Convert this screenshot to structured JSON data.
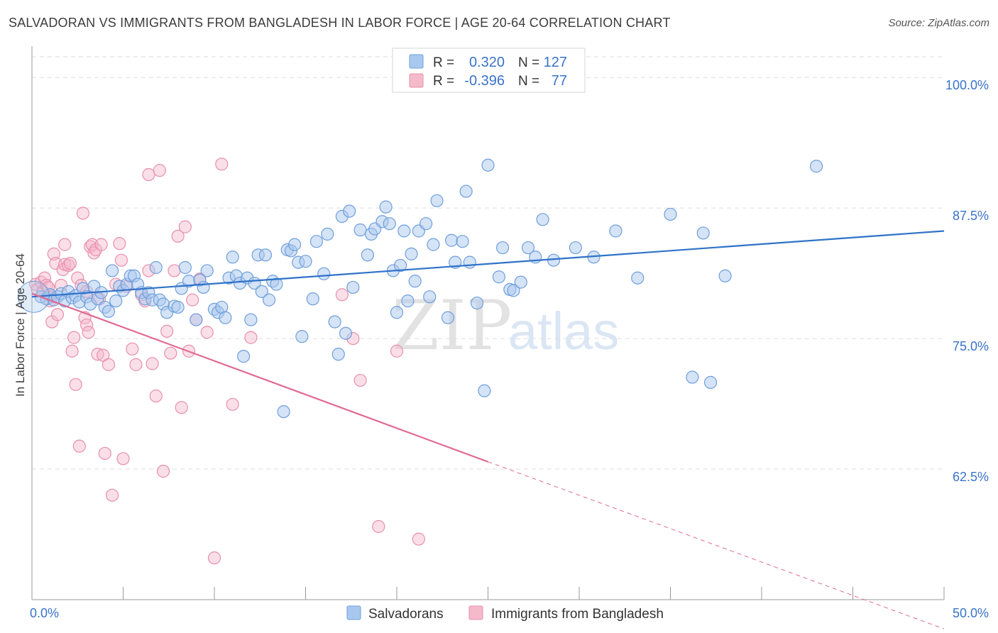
{
  "header": {
    "title": "SALVADORAN VS IMMIGRANTS FROM BANGLADESH IN LABOR FORCE | AGE 20-64 CORRELATION CHART",
    "source": "Source: ZipAtlas.com"
  },
  "watermark": {
    "zip": "ZIP",
    "atlas": "atlas"
  },
  "colors": {
    "blue_fill": "#a9c8ee",
    "blue_stroke": "#6f9fdc",
    "blue_line": "#2f72c9",
    "pink_fill": "#f5b9cc",
    "pink_stroke": "#e88fac",
    "pink_line": "#e06a94",
    "grid": "#dddddd",
    "tick_text": "#3a73c9"
  },
  "legend": {
    "rows": [
      {
        "r_label": "R =",
        "r_value": "0.320",
        "n_label": "N =",
        "n_value": "127"
      },
      {
        "r_label": "R =",
        "r_value": "-0.396",
        "n_label": "N =",
        "n_value": "77"
      }
    ]
  },
  "chart_data": {
    "type": "scatter",
    "title": "SALVADORAN VS IMMIGRANTS FROM BANGLADESH IN LABOR FORCE | AGE 20-64 CORRELATION CHART",
    "xlabel": "",
    "ylabel": "In Labor Force | Age 20-64",
    "xlim": [
      0,
      50
    ],
    "ylim": [
      50,
      103
    ],
    "x_tick_labels": [
      "0.0%",
      "50.0%"
    ],
    "y_ticks": [
      62.5,
      75.0,
      87.5,
      100.0
    ],
    "y_tick_labels": [
      "62.5%",
      "75.0%",
      "87.5%",
      "100.0%"
    ],
    "grid": true,
    "legend_position": "bottom",
    "series": [
      {
        "name": "Salvadorans",
        "R": 0.32,
        "N": 127,
        "trend": {
          "x0": 0,
          "y0": 79.0,
          "x1": 50,
          "y1": 85.3
        },
        "points": [
          [
            0.5,
            79.0
          ],
          [
            0.8,
            78.8
          ],
          [
            1.0,
            79.2
          ],
          [
            1.2,
            78.7
          ],
          [
            1.4,
            79.0
          ],
          [
            1.6,
            79.3
          ],
          [
            1.8,
            78.6
          ],
          [
            2.0,
            79.5
          ],
          [
            2.2,
            78.9
          ],
          [
            2.4,
            79.1
          ],
          [
            2.6,
            78.5
          ],
          [
            2.8,
            79.8
          ],
          [
            3.0,
            79.0
          ],
          [
            3.2,
            78.3
          ],
          [
            3.4,
            80.0
          ],
          [
            3.6,
            78.8
          ],
          [
            3.8,
            79.4
          ],
          [
            4.0,
            78.0
          ],
          [
            4.2,
            77.6
          ],
          [
            4.4,
            81.5
          ],
          [
            4.6,
            78.6
          ],
          [
            4.8,
            80.0
          ],
          [
            5.0,
            79.6
          ],
          [
            5.2,
            80.2
          ],
          [
            5.4,
            81.0
          ],
          [
            5.6,
            81.0
          ],
          [
            5.8,
            80.2
          ],
          [
            6.0,
            79.4
          ],
          [
            6.2,
            78.8
          ],
          [
            6.4,
            79.4
          ],
          [
            6.6,
            78.7
          ],
          [
            6.8,
            81.8
          ],
          [
            7.0,
            78.7
          ],
          [
            7.2,
            78.3
          ],
          [
            7.4,
            77.5
          ],
          [
            7.8,
            78.1
          ],
          [
            8.0,
            78.0
          ],
          [
            8.2,
            79.8
          ],
          [
            8.4,
            81.8
          ],
          [
            8.6,
            80.5
          ],
          [
            9.0,
            76.8
          ],
          [
            9.2,
            80.6
          ],
          [
            9.4,
            79.9
          ],
          [
            9.6,
            81.5
          ],
          [
            10.0,
            77.8
          ],
          [
            10.2,
            77.5
          ],
          [
            10.4,
            78.0
          ],
          [
            10.6,
            77.0
          ],
          [
            10.8,
            80.8
          ],
          [
            11.0,
            82.8
          ],
          [
            11.2,
            81.0
          ],
          [
            11.4,
            80.3
          ],
          [
            11.6,
            73.3
          ],
          [
            11.8,
            80.8
          ],
          [
            12.0,
            76.8
          ],
          [
            12.2,
            80.3
          ],
          [
            12.4,
            83.0
          ],
          [
            12.6,
            79.5
          ],
          [
            12.8,
            83.0
          ],
          [
            13.0,
            78.7
          ],
          [
            13.2,
            80.5
          ],
          [
            13.4,
            80.2
          ],
          [
            13.8,
            68.0
          ],
          [
            14.0,
            83.5
          ],
          [
            14.2,
            83.4
          ],
          [
            14.4,
            84.0
          ],
          [
            14.6,
            82.3
          ],
          [
            14.8,
            75.2
          ],
          [
            15.0,
            82.4
          ],
          [
            15.4,
            78.8
          ],
          [
            15.6,
            84.3
          ],
          [
            16.0,
            81.2
          ],
          [
            16.2,
            85.0
          ],
          [
            16.6,
            76.6
          ],
          [
            16.8,
            73.5
          ],
          [
            17.0,
            86.7
          ],
          [
            17.2,
            75.5
          ],
          [
            17.4,
            87.2
          ],
          [
            17.6,
            79.9
          ],
          [
            18.0,
            85.4
          ],
          [
            18.4,
            83.0
          ],
          [
            18.6,
            85.0
          ],
          [
            18.8,
            85.5
          ],
          [
            19.2,
            86.2
          ],
          [
            19.4,
            87.6
          ],
          [
            19.6,
            86.0
          ],
          [
            19.8,
            81.5
          ],
          [
            20.0,
            77.5
          ],
          [
            20.2,
            82.0
          ],
          [
            20.4,
            85.3
          ],
          [
            20.6,
            78.6
          ],
          [
            20.8,
            83.1
          ],
          [
            21.0,
            80.5
          ],
          [
            21.2,
            85.3
          ],
          [
            21.6,
            86.0
          ],
          [
            21.8,
            79.0
          ],
          [
            22.0,
            84.0
          ],
          [
            22.2,
            88.2
          ],
          [
            22.8,
            77.0
          ],
          [
            23.0,
            84.4
          ],
          [
            23.2,
            82.3
          ],
          [
            23.6,
            84.3
          ],
          [
            23.8,
            89.1
          ],
          [
            24.0,
            82.3
          ],
          [
            24.4,
            78.4
          ],
          [
            24.8,
            70.0
          ],
          [
            25.0,
            91.6
          ],
          [
            25.6,
            80.9
          ],
          [
            25.8,
            83.7
          ],
          [
            26.2,
            79.7
          ],
          [
            26.4,
            79.6
          ],
          [
            26.8,
            80.4
          ],
          [
            27.2,
            83.7
          ],
          [
            27.6,
            82.8
          ],
          [
            28.0,
            86.4
          ],
          [
            28.6,
            82.5
          ],
          [
            29.8,
            83.7
          ],
          [
            30.8,
            82.8
          ],
          [
            32.0,
            85.3
          ],
          [
            33.2,
            80.8
          ],
          [
            35.0,
            86.9
          ],
          [
            36.2,
            71.3
          ],
          [
            36.8,
            85.1
          ],
          [
            37.2,
            70.8
          ],
          [
            38.0,
            81.0
          ],
          [
            43.0,
            91.5
          ]
        ]
      },
      {
        "name": "Immigrants from Bangladesh",
        "R": -0.396,
        "N": 77,
        "trend": {
          "x0": 0,
          "y0": 79.3,
          "x1": 25.0,
          "y1": 63.2,
          "dash_x1": 50,
          "dash_y1": 47.2
        },
        "points": [
          [
            0.2,
            80.2
          ],
          [
            0.3,
            79.7
          ],
          [
            0.5,
            80.4
          ],
          [
            0.6,
            79.5
          ],
          [
            0.7,
            80.8
          ],
          [
            0.8,
            80.1
          ],
          [
            0.9,
            79.9
          ],
          [
            1.0,
            78.6
          ],
          [
            1.1,
            79.0
          ],
          [
            1.1,
            76.6
          ],
          [
            1.2,
            83.1
          ],
          [
            1.3,
            82.2
          ],
          [
            1.4,
            77.3
          ],
          [
            1.6,
            80.1
          ],
          [
            1.7,
            81.6
          ],
          [
            1.8,
            82.1
          ],
          [
            1.8,
            84.0
          ],
          [
            2.0,
            82.0
          ],
          [
            2.1,
            82.2
          ],
          [
            2.2,
            73.8
          ],
          [
            2.3,
            75.1
          ],
          [
            2.4,
            70.6
          ],
          [
            2.5,
            80.8
          ],
          [
            2.6,
            64.7
          ],
          [
            2.7,
            80.1
          ],
          [
            2.8,
            87.0
          ],
          [
            2.9,
            77.0
          ],
          [
            3.0,
            76.3
          ],
          [
            3.1,
            75.6
          ],
          [
            3.2,
            83.8
          ],
          [
            3.3,
            84.0
          ],
          [
            3.4,
            83.2
          ],
          [
            3.5,
            83.5
          ],
          [
            3.6,
            73.5
          ],
          [
            3.7,
            78.8
          ],
          [
            3.8,
            84.0
          ],
          [
            3.9,
            73.4
          ],
          [
            4.0,
            64.0
          ],
          [
            4.2,
            72.5
          ],
          [
            4.4,
            60.0
          ],
          [
            4.6,
            80.2
          ],
          [
            4.8,
            84.1
          ],
          [
            4.9,
            82.5
          ],
          [
            5.0,
            63.5
          ],
          [
            5.2,
            80.0
          ],
          [
            5.5,
            74.0
          ],
          [
            5.7,
            72.5
          ],
          [
            6.0,
            79.2
          ],
          [
            6.2,
            78.6
          ],
          [
            6.4,
            90.7
          ],
          [
            6.6,
            72.6
          ],
          [
            6.8,
            69.5
          ],
          [
            7.0,
            91.1
          ],
          [
            7.2,
            62.3
          ],
          [
            7.4,
            75.7
          ],
          [
            7.6,
            73.6
          ],
          [
            7.8,
            81.5
          ],
          [
            8.0,
            84.8
          ],
          [
            8.2,
            68.4
          ],
          [
            8.4,
            85.7
          ],
          [
            8.6,
            73.8
          ],
          [
            8.8,
            78.7
          ],
          [
            9.0,
            76.8
          ],
          [
            9.2,
            80.7
          ],
          [
            9.6,
            75.6
          ],
          [
            10.0,
            54.0
          ],
          [
            10.4,
            91.7
          ],
          [
            11.0,
            68.7
          ],
          [
            12.0,
            75.1
          ],
          [
            17.0,
            79.2
          ],
          [
            17.6,
            75.0
          ],
          [
            18.0,
            71.0
          ],
          [
            19.0,
            57.0
          ],
          [
            20.0,
            73.8
          ],
          [
            21.2,
            55.8
          ],
          [
            6.4,
            81.5
          ],
          [
            3.0,
            79.5
          ]
        ]
      }
    ]
  },
  "bottom_legend": {
    "items": [
      "Salvadorans",
      "Immigrants from Bangladesh"
    ]
  }
}
